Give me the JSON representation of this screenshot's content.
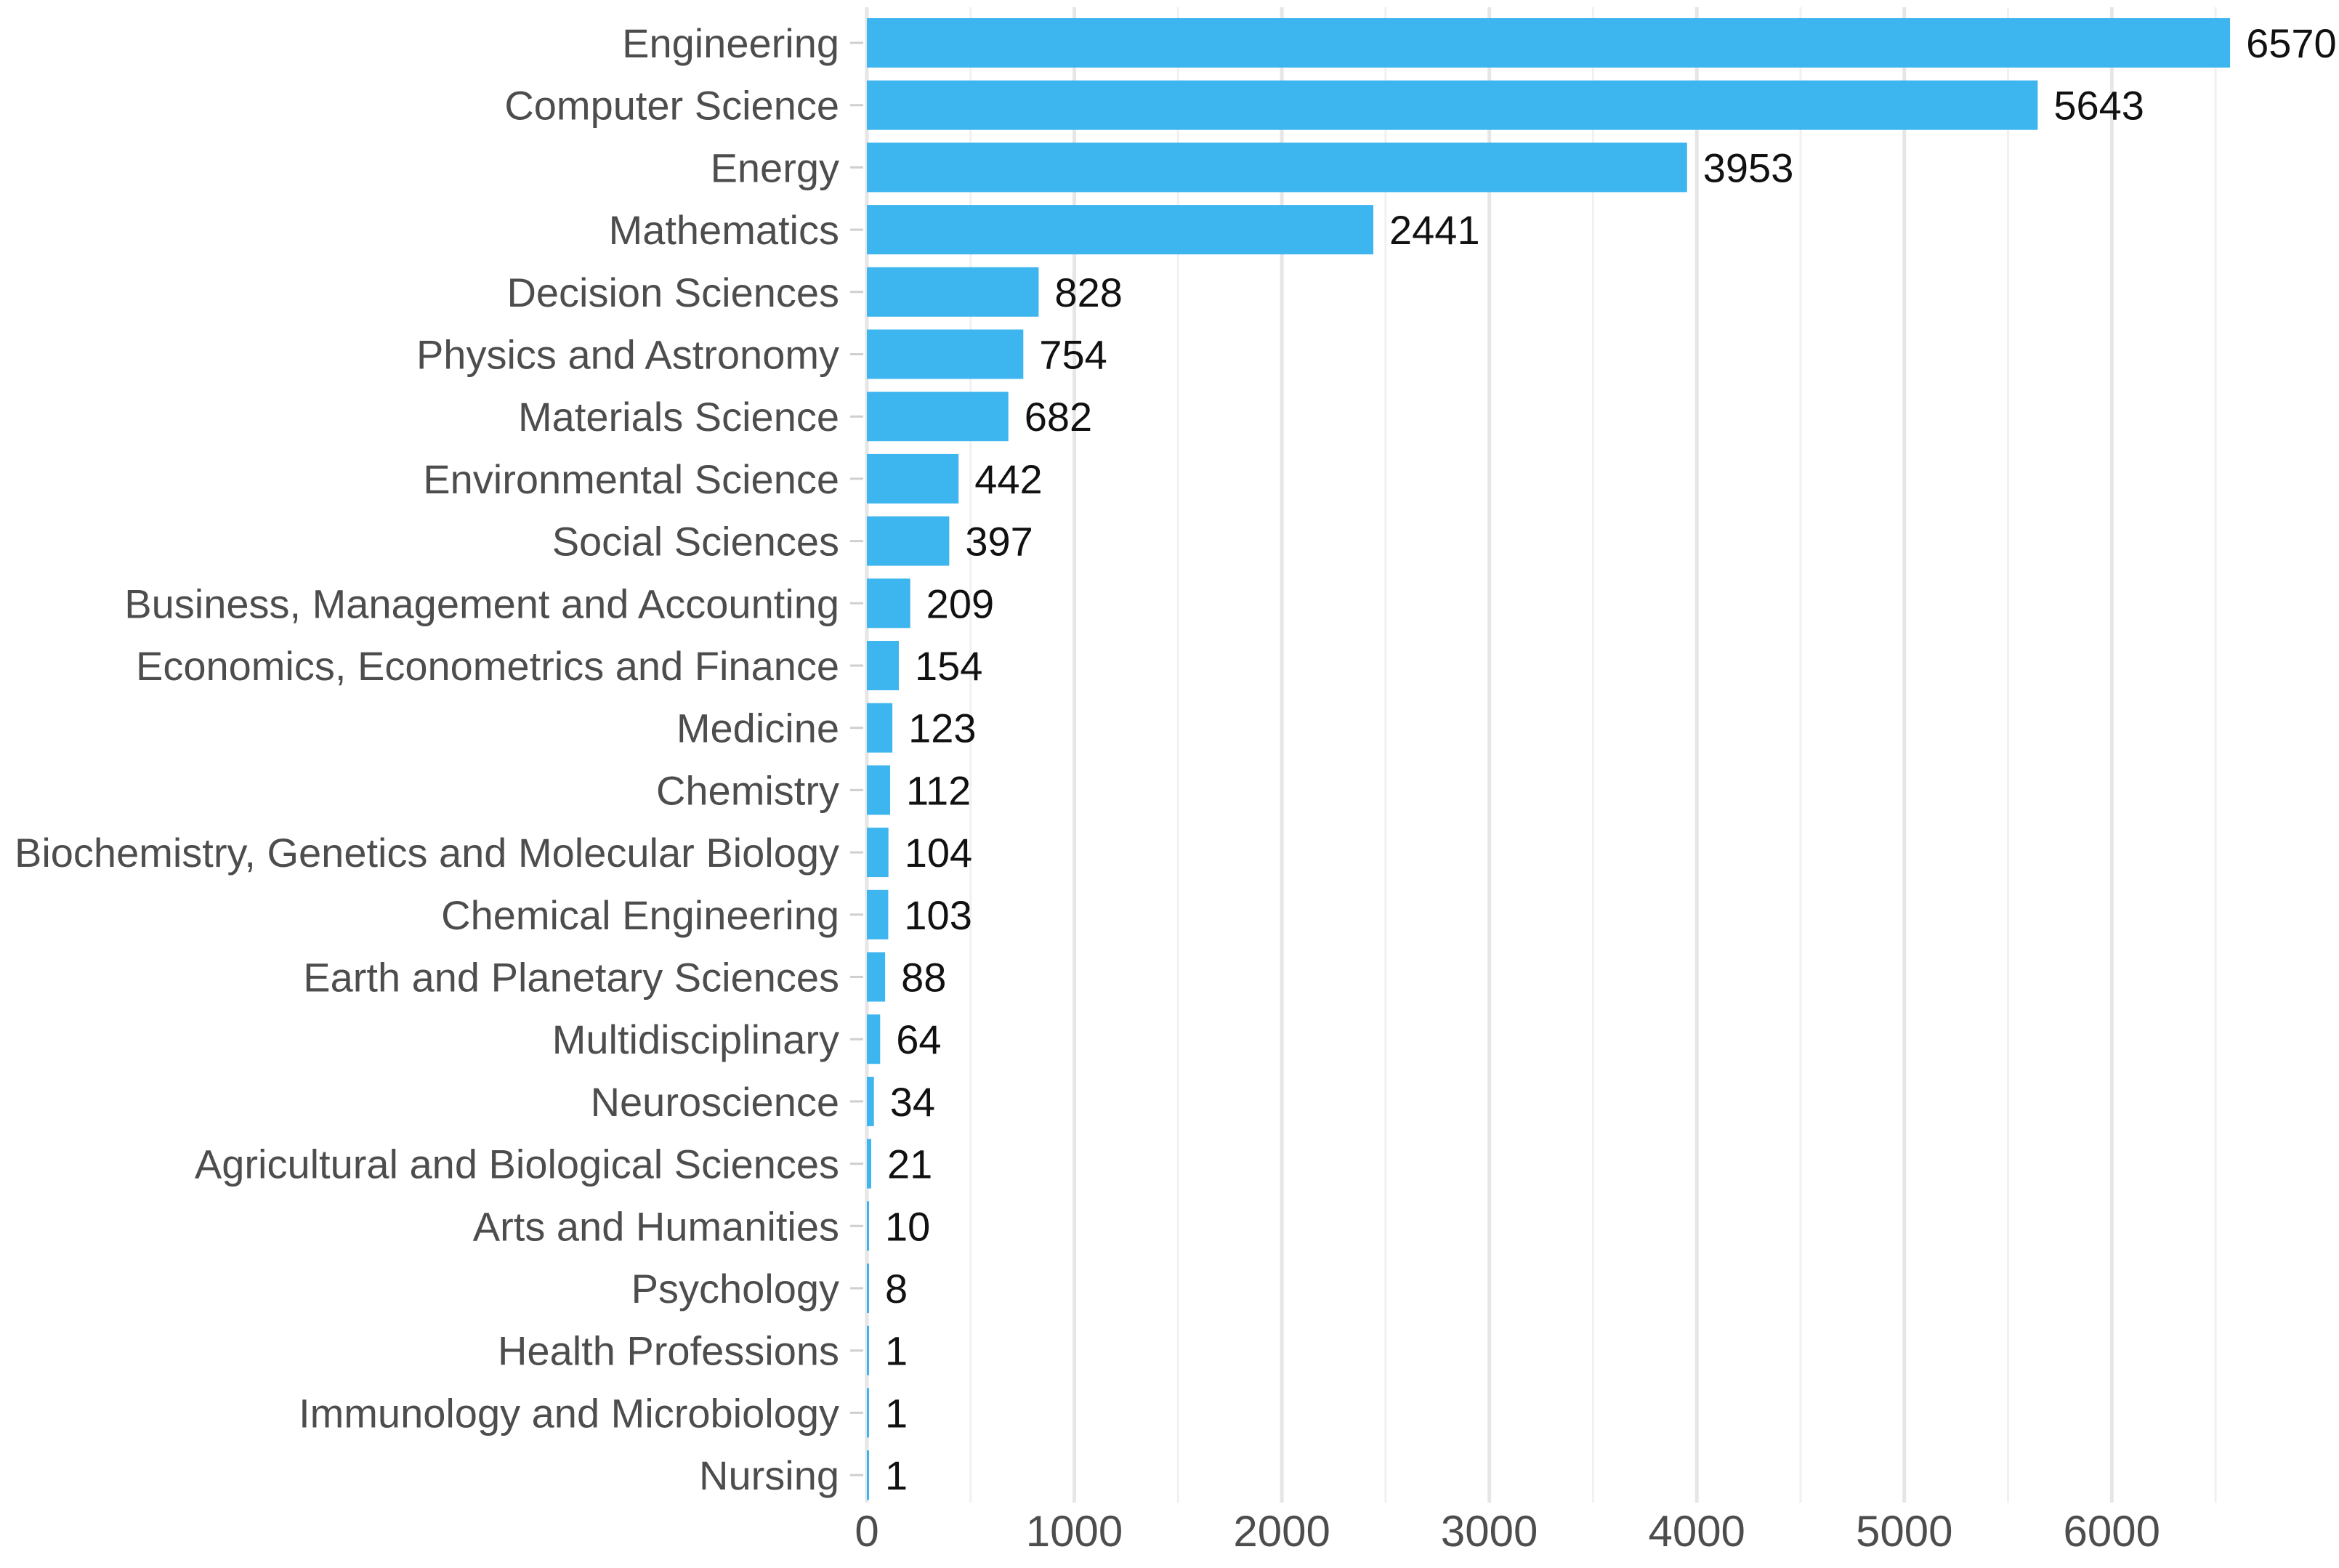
{
  "chart_data": {
    "type": "bar",
    "orientation": "horizontal",
    "title": "",
    "xlabel": "",
    "ylabel": "",
    "xlim": [
      0,
      6600
    ],
    "xticks": [
      0,
      1000,
      2000,
      3000,
      4000,
      5000,
      6000
    ],
    "grid": true,
    "bar_color": "#3db5ee",
    "categories": [
      "Engineering",
      "Computer Science",
      "Energy",
      "Mathematics",
      "Decision Sciences",
      "Physics and Astronomy",
      "Materials Science",
      "Environmental Science",
      "Social Sciences",
      "Business, Management and Accounting",
      "Economics, Econometrics and Finance",
      "Medicine",
      "Chemistry",
      "Biochemistry, Genetics and Molecular Biology",
      "Chemical Engineering",
      "Earth and Planetary Sciences",
      "Multidisciplinary",
      "Neuroscience",
      "Agricultural and Biological Sciences",
      "Arts and Humanities",
      "Psychology",
      "Health Professions",
      "Immunology and Microbiology",
      "Nursing"
    ],
    "values": [
      6570,
      5643,
      3953,
      2441,
      828,
      754,
      682,
      442,
      397,
      209,
      154,
      123,
      112,
      104,
      103,
      88,
      64,
      34,
      21,
      10,
      8,
      1,
      1,
      1
    ]
  }
}
